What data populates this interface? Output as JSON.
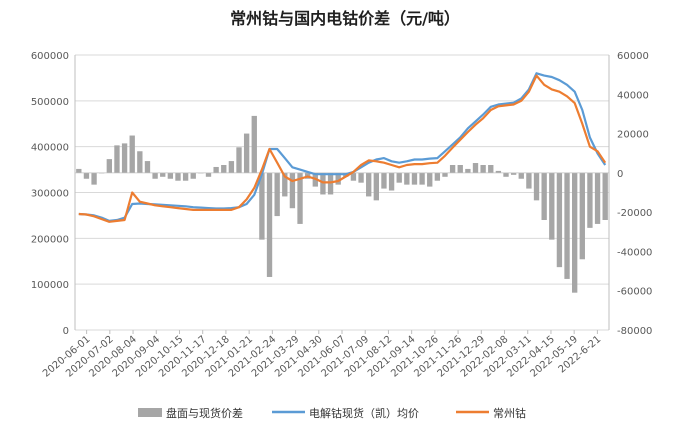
{
  "chart_data": {
    "type": "line",
    "title": "常州钴与国内电钴价差（元/吨）",
    "left_axis": {
      "ylim": [
        0,
        600000
      ],
      "ticks": [
        "0",
        "100000",
        "200000",
        "300000",
        "400000",
        "500000",
        "600000"
      ]
    },
    "right_axis": {
      "ylim": [
        -80000,
        60000
      ],
      "ticks": [
        "-80000",
        "-60000",
        "-40000",
        "-20000",
        "0",
        "20000",
        "40000",
        "60000"
      ]
    },
    "x_tick_labels": [
      "2020-06-01",
      "2020-07-02",
      "2020-08-04",
      "2020-09-04",
      "2020-10-15",
      "2020-11-17",
      "2020-12-18",
      "2021-01-21",
      "2021-02-24",
      "2021-03-29",
      "2021-04-30",
      "2021-06-07",
      "2021-07-09",
      "2021-08-12",
      "2021-09-14",
      "2021-10-26",
      "2021-11-26",
      "2021-12-29",
      "2022-02-08",
      "2022-03-11",
      "2022-04-15",
      "2022-05-19",
      "2022-6-21"
    ],
    "legend": [
      "盘面与现货价差",
      "电解钴现货（凯）均价",
      "常州钴"
    ],
    "legend_position": "bottom",
    "colors": {
      "spread": "#a6a6a6",
      "electrolytic": "#5b9bd5",
      "changzhou": "#ed7d31"
    },
    "series": [
      {
        "name": "电解钴现货（凯）均价",
        "axis": "left",
        "values": [
          253000,
          252000,
          250000,
          245000,
          238000,
          240000,
          245000,
          275000,
          276000,
          275000,
          274000,
          273000,
          272000,
          271000,
          270000,
          268000,
          267000,
          266000,
          265000,
          265000,
          266000,
          268000,
          275000,
          295000,
          340000,
          395000,
          395000,
          375000,
          355000,
          350000,
          345000,
          340000,
          340000,
          340000,
          340000,
          340000,
          345000,
          355000,
          365000,
          372000,
          375000,
          368000,
          365000,
          368000,
          372000,
          372000,
          374000,
          375000,
          390000,
          405000,
          420000,
          440000,
          455000,
          470000,
          487000,
          492000,
          494000,
          496000,
          505000,
          525000,
          560000,
          555000,
          552000,
          545000,
          535000,
          520000,
          480000,
          420000,
          385000,
          360000
        ]
      },
      {
        "name": "常州钴",
        "axis": "left",
        "values": [
          253000,
          252000,
          248000,
          242000,
          236000,
          238000,
          240000,
          300000,
          280000,
          276000,
          272000,
          270000,
          268000,
          266000,
          264000,
          262000,
          262000,
          262000,
          262000,
          262000,
          262000,
          268000,
          285000,
          310000,
          350000,
          395000,
          365000,
          335000,
          325000,
          330000,
          335000,
          330000,
          322000,
          322000,
          325000,
          335000,
          345000,
          360000,
          370000,
          368000,
          365000,
          360000,
          355000,
          360000,
          362000,
          362000,
          364000,
          365000,
          380000,
          398000,
          415000,
          432000,
          448000,
          462000,
          480000,
          488000,
          490000,
          492000,
          500000,
          520000,
          555000,
          535000,
          525000,
          520000,
          510000,
          495000,
          450000,
          400000,
          390000,
          365000
        ]
      },
      {
        "name": "盘面与现货价差",
        "axis": "right",
        "type": "bar",
        "values": [
          2000,
          -3000,
          -6000,
          0,
          7000,
          14000,
          15000,
          19000,
          11000,
          6000,
          -3000,
          -2000,
          -3000,
          -4000,
          -4000,
          -3000,
          0,
          -2000,
          3000,
          4000,
          6000,
          13000,
          20000,
          29000,
          -34000,
          -53000,
          -22000,
          -12000,
          -18000,
          -26000,
          -3000,
          -7000,
          -11000,
          -11000,
          -6000,
          -2000,
          -4000,
          -5000,
          -12000,
          -14000,
          -8000,
          -9000,
          -5000,
          -6000,
          -6000,
          -6000,
          -7000,
          -4000,
          -2000,
          4000,
          4000,
          2000,
          5000,
          4000,
          4000,
          1000,
          -2000,
          -1000,
          -3000,
          -8000,
          -14000,
          -24000,
          -34000,
          -48000,
          -54000,
          -61000,
          -44000,
          -28000,
          -26000,
          -24000
        ]
      }
    ]
  }
}
